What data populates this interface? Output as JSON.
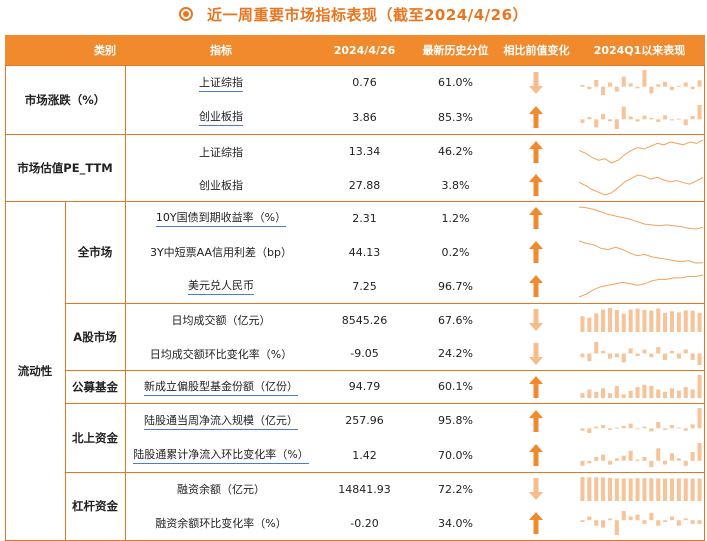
{
  "title": "近一周重要市场指标表现（截至2024/4/26）",
  "header": {
    "category": "类别",
    "indicator": "指标",
    "date": "2024/4/26",
    "percentile": "最新历史分位",
    "change": "相比前值变化",
    "trend": "2024Q1以来表现"
  },
  "groups": [
    {
      "label": "市场涨跌（%）"
    },
    {
      "label": "市场估值PE_TTM"
    },
    {
      "label": "流动性"
    }
  ],
  "subgroups": [
    {
      "label": "全市场"
    },
    {
      "label": "A股市场"
    },
    {
      "label": "公募基金"
    },
    {
      "label": "北上资金"
    },
    {
      "label": "杠杆资金"
    }
  ],
  "rows": [
    {
      "indicator": "上证综指",
      "value": "0.76",
      "percentile": "61.0%",
      "direction": "down",
      "spark": "bar"
    },
    {
      "indicator": "创业板指",
      "value": "3.86",
      "percentile": "85.3%",
      "direction": "up",
      "spark": "bar"
    },
    {
      "indicator": "上证综指",
      "value": "13.34",
      "percentile": "46.2%",
      "direction": "up",
      "spark": "line"
    },
    {
      "indicator": "创业板指",
      "value": "27.88",
      "percentile": "3.8%",
      "direction": "up",
      "spark": "line"
    },
    {
      "indicator": "10Y国债到期收益率（%）",
      "value": "2.31",
      "percentile": "1.2%",
      "direction": "up",
      "spark": "line"
    },
    {
      "indicator": "3Y中短票AA信用利差（bp）",
      "value": "44.13",
      "percentile": "0.2%",
      "direction": "up",
      "spark": "line"
    },
    {
      "indicator": "美元兑人民币",
      "value": "7.25",
      "percentile": "96.7%",
      "direction": "up",
      "spark": "line"
    },
    {
      "indicator": "日均成交额（亿元）",
      "value": "8545.26",
      "percentile": "67.6%",
      "direction": "down",
      "spark": "bar"
    },
    {
      "indicator": "日均成交额环比变化率（%）",
      "value": "-9.05",
      "percentile": "24.2%",
      "direction": "down",
      "spark": "bar"
    },
    {
      "indicator": "新成立偏股型基金份额（亿份）",
      "value": "94.79",
      "percentile": "60.1%",
      "direction": "up",
      "spark": "bar"
    },
    {
      "indicator": "陆股通当周净流入规模（亿元）",
      "value": "257.96",
      "percentile": "95.8%",
      "direction": "up",
      "spark": "bar"
    },
    {
      "indicator": "陆股通累计净流入环比变化率（%）",
      "value": "1.42",
      "percentile": "70.0%",
      "direction": "up",
      "spark": "bar"
    },
    {
      "indicator": "融资余额（亿元）",
      "value": "14841.93",
      "percentile": "72.2%",
      "direction": "down",
      "spark": "bar"
    },
    {
      "indicator": "融资余额环比变化率（%）",
      "value": "-0.20",
      "percentile": "34.0%",
      "direction": "up",
      "spark": "bar"
    }
  ],
  "sparklines": [
    [
      0.2,
      -0.3,
      0.8,
      -1.0,
      0.5,
      -0.6,
      1.2,
      0.4,
      -0.2,
      2.0,
      -0.8,
      0.3,
      0.6,
      -0.4,
      0.1,
      0.5,
      -0.3,
      0.76
    ],
    [
      -1.0,
      0.6,
      -2.2,
      1.4,
      -0.5,
      -2.6,
      3.4,
      0.8,
      -0.6,
      1.0,
      0.4,
      -0.7,
      1.1,
      -0.3,
      0.2,
      -1.6,
      0.9,
      3.86
    ],
    [
      12.6,
      12.4,
      12.1,
      11.9,
      12.0,
      11.7,
      11.9,
      12.3,
      12.6,
      12.8,
      12.7,
      12.9,
      13.1,
      13.0,
      13.2,
      13.1,
      13.0,
      13.2,
      13.1,
      13.34
    ],
    [
      26.8,
      26.1,
      25.2,
      24.6,
      24.0,
      24.5,
      25.6,
      26.9,
      27.6,
      28.4,
      28.1,
      27.5,
      27.9,
      27.3,
      26.9,
      27.2,
      26.7,
      26.4,
      27.1,
      27.88
    ],
    [
      2.56,
      2.55,
      2.53,
      2.5,
      2.47,
      2.45,
      2.43,
      2.41,
      2.38,
      2.35,
      2.34,
      2.33,
      2.34,
      2.33,
      2.32,
      2.3,
      2.29,
      2.31
    ],
    [
      62,
      60,
      59,
      56,
      55,
      57,
      55,
      52,
      50,
      51,
      49,
      48,
      47,
      46,
      45,
      46,
      44,
      44.13
    ],
    [
      7.1,
      7.12,
      7.15,
      7.17,
      7.18,
      7.19,
      7.2,
      7.19,
      7.18,
      7.19,
      7.21,
      7.22,
      7.22,
      7.23,
      7.23,
      7.24,
      7.24,
      7.25
    ],
    [
      7000,
      6300,
      8200,
      9900,
      10600,
      9700,
      8100,
      9900,
      10300,
      9800,
      9500,
      10400,
      8500,
      9200,
      8700,
      9600,
      9400,
      8545
    ],
    [
      -3,
      -6,
      9,
      2,
      -4,
      -3,
      -7,
      4,
      -2,
      3,
      -3,
      5,
      -5,
      2,
      -4,
      3,
      -5,
      -9.05
    ],
    [
      20,
      35,
      25,
      40,
      20,
      50,
      15,
      30,
      45,
      55,
      50,
      35,
      25,
      40,
      30,
      45,
      35,
      94.79
    ],
    [
      -30,
      -60,
      20,
      40,
      -20,
      10,
      30,
      60,
      -10,
      20,
      -40,
      80,
      -20,
      40,
      10,
      -30,
      50,
      257.96
    ],
    [
      -0.4,
      -0.2,
      0.3,
      0.5,
      -0.3,
      0.2,
      0.4,
      0.8,
      0.1,
      0.3,
      -0.5,
      1.0,
      -0.3,
      0.6,
      0.2,
      -0.4,
      0.7,
      1.42
    ],
    [
      15800,
      15700,
      15600,
      15500,
      15300,
      14900,
      14800,
      14900,
      15000,
      15100,
      15000,
      14900,
      14800,
      14900,
      14850,
      14900,
      14800,
      14841
    ],
    [
      -0.1,
      0.2,
      -0.3,
      -0.4,
      0.1,
      -0.8,
      0.5,
      0.2,
      0.3,
      -0.2,
      0.4,
      -0.3,
      -0.1,
      0.2,
      -0.3,
      0.1,
      -0.2,
      -0.2
    ]
  ],
  "colors": {
    "accent": "#e8761f",
    "header_bg": "#f08a2c",
    "bar": "#f6c49a",
    "line": "#f2a25e",
    "arrow_up": "#f08a2c",
    "arrow_down": "#f6bd8b"
  }
}
